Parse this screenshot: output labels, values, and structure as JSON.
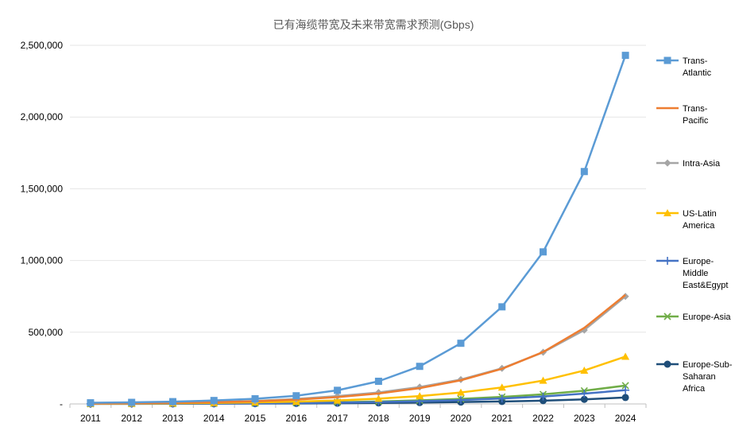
{
  "chart_data": {
    "type": "line",
    "title": "已有海缆带宽及未来带宽需求预测(Gbps)",
    "xlabel": "",
    "ylabel": "",
    "categories": [
      "2011",
      "2012",
      "2013",
      "2014",
      "2015",
      "2016",
      "2017",
      "2018",
      "2019",
      "2020",
      "2021",
      "2022",
      "2023",
      "2024"
    ],
    "ylim": [
      0,
      2500000
    ],
    "yticks": [
      0,
      500000,
      1000000,
      1500000,
      2000000,
      2500000
    ],
    "ytick_labels": [
      "-",
      "500,000",
      "1,000,000",
      "1,500,000",
      "2,000,000",
      "2,500,000"
    ],
    "grid": "horizontal",
    "legend_position": "right",
    "series": [
      {
        "name": "Trans-Atlantic",
        "legend_lines": [
          "Trans-",
          "Atlantic"
        ],
        "color": "#5b9bd5",
        "marker": "square",
        "values": [
          8000,
          11000,
          16000,
          24000,
          36000,
          57000,
          95000,
          158000,
          262000,
          423000,
          677000,
          1060000,
          1620000,
          2430000
        ]
      },
      {
        "name": "Trans-Pacific",
        "legend_lines": [
          "Trans-",
          "Pacific"
        ],
        "color": "#ed7d31",
        "marker": "none",
        "values": [
          3000,
          5000,
          8000,
          12000,
          19000,
          30000,
          48000,
          73000,
          110000,
          165000,
          245000,
          362000,
          530000,
          760000
        ]
      },
      {
        "name": "Intra-Asia",
        "legend_lines": [
          "Intra-Asia"
        ],
        "color": "#a5a5a5",
        "marker": "diamond",
        "values": [
          3000,
          5000,
          8000,
          13000,
          21000,
          35000,
          55000,
          80000,
          118000,
          170000,
          248000,
          360000,
          515000,
          750000
        ]
      },
      {
        "name": "US-Latin America",
        "legend_lines": [
          "US-Latin",
          "America"
        ],
        "color": "#ffc000",
        "marker": "triangle",
        "values": [
          2000,
          3000,
          5000,
          7000,
          11000,
          16000,
          24000,
          37000,
          55000,
          80000,
          115000,
          163000,
          233000,
          330000
        ]
      },
      {
        "name": "Europe-Middle East&Egypt",
        "legend_lines": [
          "Europe-",
          "Middle",
          "East&Egypt"
        ],
        "color": "#4472c4",
        "marker": "plus",
        "values": [
          1000,
          1500,
          2000,
          3000,
          4000,
          6000,
          9000,
          13000,
          19000,
          27000,
          38000,
          52000,
          72000,
          96000
        ]
      },
      {
        "name": "Europe-Asia",
        "legend_lines": [
          "Europe-Asia"
        ],
        "color": "#70ad47",
        "marker": "x",
        "values": [
          1000,
          1500,
          2500,
          3500,
          5000,
          8000,
          12000,
          17000,
          25000,
          35000,
          49000,
          67000,
          92000,
          128000
        ]
      },
      {
        "name": "Europe-Sub-Saharan Africa",
        "legend_lines": [
          "Europe-Sub-",
          "Saharan",
          "Africa"
        ],
        "color": "#1f4e79",
        "marker": "circle",
        "values": [
          500,
          800,
          1200,
          1800,
          2500,
          3500,
          5000,
          7000,
          9500,
          13000,
          17000,
          23000,
          32000,
          45000
        ]
      }
    ]
  }
}
